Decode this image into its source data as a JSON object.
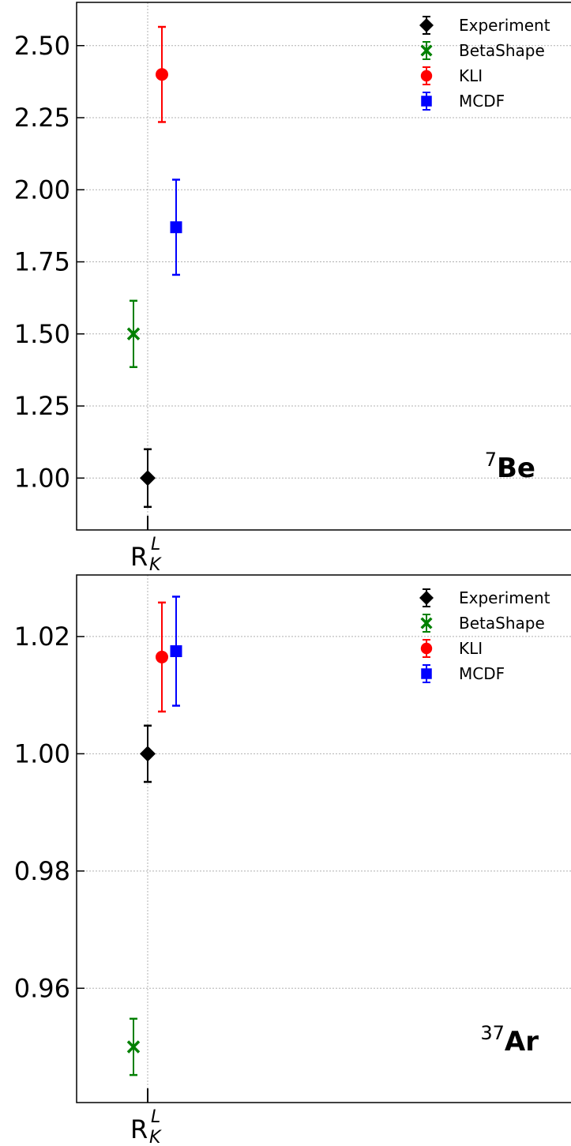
{
  "chart_data": [
    {
      "type": "scatter",
      "isotope": {
        "mass": "7",
        "symbol": "Be"
      },
      "x_tick": {
        "base": "R",
        "sub": "K",
        "sup": "L"
      },
      "ylim": [
        0.82,
        2.65
      ],
      "yticks": [
        1.0,
        1.25,
        1.5,
        1.75,
        2.0,
        2.25,
        2.5
      ],
      "ytick_labels": [
        "1.00",
        "1.25",
        "1.50",
        "1.75",
        "2.00",
        "2.25",
        "2.50"
      ],
      "grid": true,
      "legend_placement": "top-right",
      "series": [
        {
          "name": "Experiment",
          "marker": "diamond",
          "color": "#000000",
          "x_offset": 0,
          "value": 1.0,
          "err": 0.1
        },
        {
          "name": "BetaShape",
          "marker": "x",
          "color": "#008000",
          "x_offset": -1,
          "value": 1.5,
          "err": 0.115
        },
        {
          "name": "KLI",
          "marker": "circle",
          "color": "#ff0000",
          "x_offset": 1,
          "value": 2.4,
          "err": 0.165
        },
        {
          "name": "MCDF",
          "marker": "square",
          "color": "#0000ff",
          "x_offset": 2,
          "value": 1.87,
          "err": 0.165
        }
      ]
    },
    {
      "type": "scatter",
      "isotope": {
        "mass": "37",
        "symbol": "Ar"
      },
      "x_tick": {
        "base": "R",
        "sub": "K",
        "sup": "L"
      },
      "ylim": [
        0.9405,
        1.0305
      ],
      "yticks": [
        0.96,
        0.98,
        1.0,
        1.02
      ],
      "ytick_labels": [
        "0.96",
        "0.98",
        "1.00",
        "1.02"
      ],
      "grid": true,
      "legend_placement": "top-right",
      "series": [
        {
          "name": "Experiment",
          "marker": "diamond",
          "color": "#000000",
          "x_offset": 0,
          "value": 1.0,
          "err": 0.0048
        },
        {
          "name": "BetaShape",
          "marker": "x",
          "color": "#008000",
          "x_offset": -1,
          "value": 0.95,
          "err": 0.0048
        },
        {
          "name": "KLI",
          "marker": "circle",
          "color": "#ff0000",
          "x_offset": 1,
          "value": 1.0165,
          "err": 0.0093
        },
        {
          "name": "MCDF",
          "marker": "square",
          "color": "#0000ff",
          "x_offset": 2,
          "value": 1.0175,
          "err": 0.0093
        }
      ]
    }
  ]
}
